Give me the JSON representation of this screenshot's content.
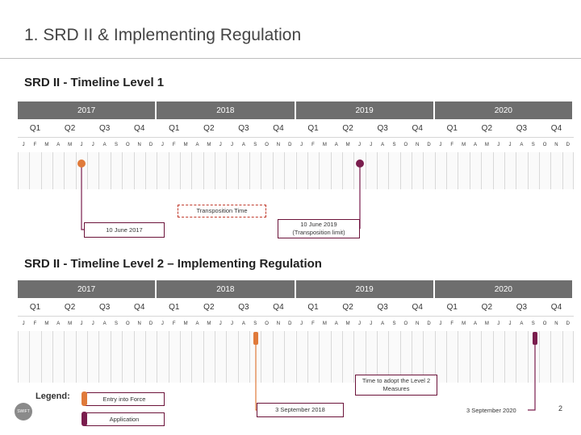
{
  "title": "1. SRD II & Implementing Regulation",
  "sections": [
    {
      "title": "SRD II - Timeline Level 1",
      "years": [
        "2017",
        "2018",
        "2019",
        "2020"
      ],
      "quarters": [
        "Q1",
        "Q2",
        "Q3",
        "Q4"
      ],
      "months": [
        "J",
        "F",
        "M",
        "A",
        "M",
        "J",
        "J",
        "A",
        "S",
        "O",
        "N",
        "D"
      ],
      "callout_transposition": "Transposition Time",
      "callout_start": "10 June 2017",
      "callout_end_line1": "10 June 2019",
      "callout_end_line2": "(Transposition limit)"
    },
    {
      "title": "SRD II - Timeline Level 2 – Implementing Regulation",
      "years": [
        "2017",
        "2018",
        "2019",
        "2020"
      ],
      "quarters": [
        "Q1",
        "Q2",
        "Q3",
        "Q4"
      ],
      "months": [
        "J",
        "F",
        "M",
        "A",
        "M",
        "J",
        "J",
        "A",
        "S",
        "O",
        "N",
        "D"
      ],
      "callout_adopt_line1": "Time to adopt the Level 2",
      "callout_adopt_line2": "Measures",
      "date_start": "3 September 2018",
      "date_end": "3 September 2020"
    }
  ],
  "legend": {
    "label": "Legend:",
    "entry_into_force": "Entry into Force",
    "application": "Application"
  },
  "logo_text": "SWIFT",
  "page_number": "2",
  "colors": {
    "year_bg": "#6e6e6e",
    "entry_into_force": "#e07a3a",
    "application": "#7a1d4d",
    "box_border": "#6b1239",
    "dashed_border": "#c0392b"
  }
}
